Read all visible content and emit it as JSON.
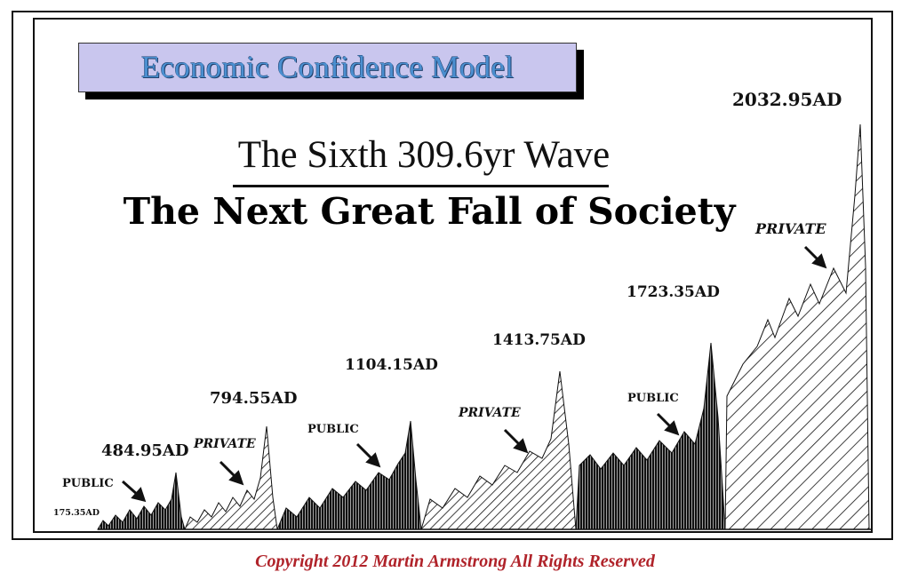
{
  "header": {
    "title": "Economic Confidence Model",
    "wave_title": "The Sixth 309.6yr Wave",
    "subtitle": "The Next Great Fall of Society"
  },
  "peaks": [
    {
      "label": "175.35AD"
    },
    {
      "label": "484.95AD"
    },
    {
      "label": "794.55AD"
    },
    {
      "label": "1104.15AD"
    },
    {
      "label": "1413.75AD"
    },
    {
      "label": "1723.35AD"
    },
    {
      "label": "2032.95AD"
    }
  ],
  "wave_labels": [
    {
      "text": "PUBLIC"
    },
    {
      "text": "PRIVATE"
    },
    {
      "text": "PUBLIC"
    },
    {
      "text": "PRIVATE"
    },
    {
      "text": "PUBLIC"
    },
    {
      "text": "PRIVATE"
    }
  ],
  "footer": {
    "copyright": "Copyright 2012 Martin Armstrong All Rights Reserved"
  },
  "colors": {
    "title_box": "#c9c6ee",
    "title_text": "#4b8fd0",
    "copyright": "#b0232a"
  }
}
